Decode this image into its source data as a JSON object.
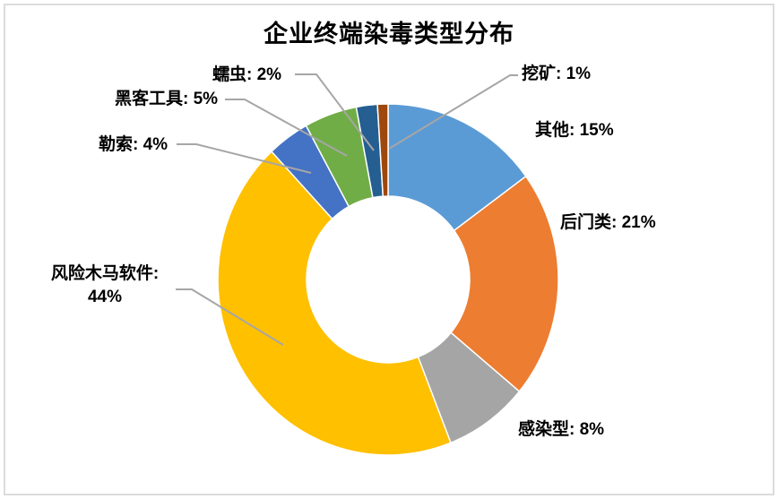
{
  "page": {
    "background": "#FFFFFF",
    "frame_color": "#DCDCDC"
  },
  "chart_data": {
    "type": "pie",
    "subtype": "donut",
    "title": "企业终端染毒类型分布",
    "unit": "%",
    "categories": [
      "其他",
      "后门类",
      "感染型",
      "风险木马软件",
      "勒索",
      "黑客工具",
      "蠕虫",
      "挖矿"
    ],
    "values": [
      15,
      21,
      8,
      44,
      4,
      5,
      2,
      1
    ],
    "colors": [
      "#5B9BD5",
      "#ED7D31",
      "#A5A5A5",
      "#FFC000",
      "#4472C4",
      "#70AD47",
      "#255E91",
      "#9E480E"
    ],
    "labels": [
      "其他: 15%",
      "后门类: 21%",
      "感染型: 8%",
      "风险木马软件: 44%",
      "勒索: 4%",
      "黑客工具: 5%",
      "蠕虫: 2%",
      "挖矿: 1%"
    ],
    "start_angle_deg": 0,
    "direction": "clockwise",
    "hole_ratio": 0.47,
    "slice_border_color": "#FFFFFF",
    "leader_line_color": "#A6A6A6",
    "title_color": "#000000",
    "label_color": "#000000",
    "legend": "none",
    "grid": "off"
  }
}
